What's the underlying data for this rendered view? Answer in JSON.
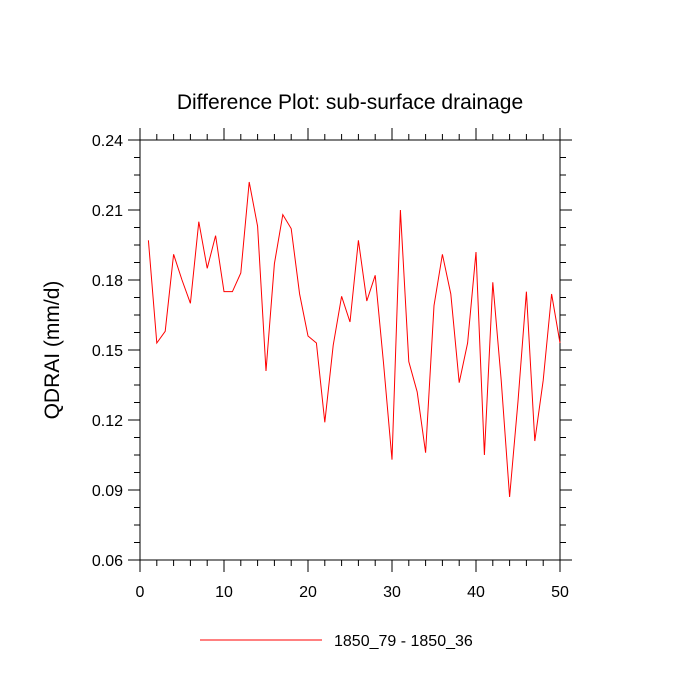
{
  "chart_data": {
    "type": "line",
    "title": "Difference Plot: sub-surface drainage",
    "xlabel": "",
    "ylabel": "QDRAI  (mm/d)",
    "xlim": [
      0,
      50
    ],
    "ylim": [
      0.06,
      0.24
    ],
    "xticks": [
      0,
      10,
      20,
      30,
      40,
      50
    ],
    "yticks": [
      0.06,
      0.09,
      0.12,
      0.15,
      0.18,
      0.21,
      0.24
    ],
    "ytick_labels": [
      "0.06",
      "0.09",
      "0.12",
      "0.15",
      "0.18",
      "0.21",
      "0.24"
    ],
    "grid": false,
    "legend_position": "bottom",
    "series": [
      {
        "name": "1850_79 - 1850_36",
        "color": "#ff0000",
        "x": [
          1,
          2,
          3,
          4,
          5,
          6,
          7,
          8,
          9,
          10,
          11,
          12,
          13,
          14,
          15,
          16,
          17,
          18,
          19,
          20,
          21,
          22,
          23,
          24,
          25,
          26,
          27,
          28,
          29,
          30,
          31,
          32,
          33,
          34,
          35,
          36,
          37,
          38,
          39,
          40,
          41,
          42,
          43,
          44,
          45,
          46,
          47,
          48,
          49,
          50
        ],
        "values": [
          0.197,
          0.153,
          0.158,
          0.191,
          0.18,
          0.17,
          0.205,
          0.185,
          0.199,
          0.175,
          0.175,
          0.183,
          0.222,
          0.203,
          0.141,
          0.187,
          0.208,
          0.202,
          0.174,
          0.156,
          0.153,
          0.119,
          0.152,
          0.173,
          0.162,
          0.197,
          0.171,
          0.182,
          0.144,
          0.103,
          0.21,
          0.145,
          0.132,
          0.106,
          0.169,
          0.191,
          0.174,
          0.136,
          0.153,
          0.192,
          0.105,
          0.179,
          0.137,
          0.087,
          0.128,
          0.175,
          0.111,
          0.137,
          0.174,
          0.153
        ]
      }
    ]
  }
}
